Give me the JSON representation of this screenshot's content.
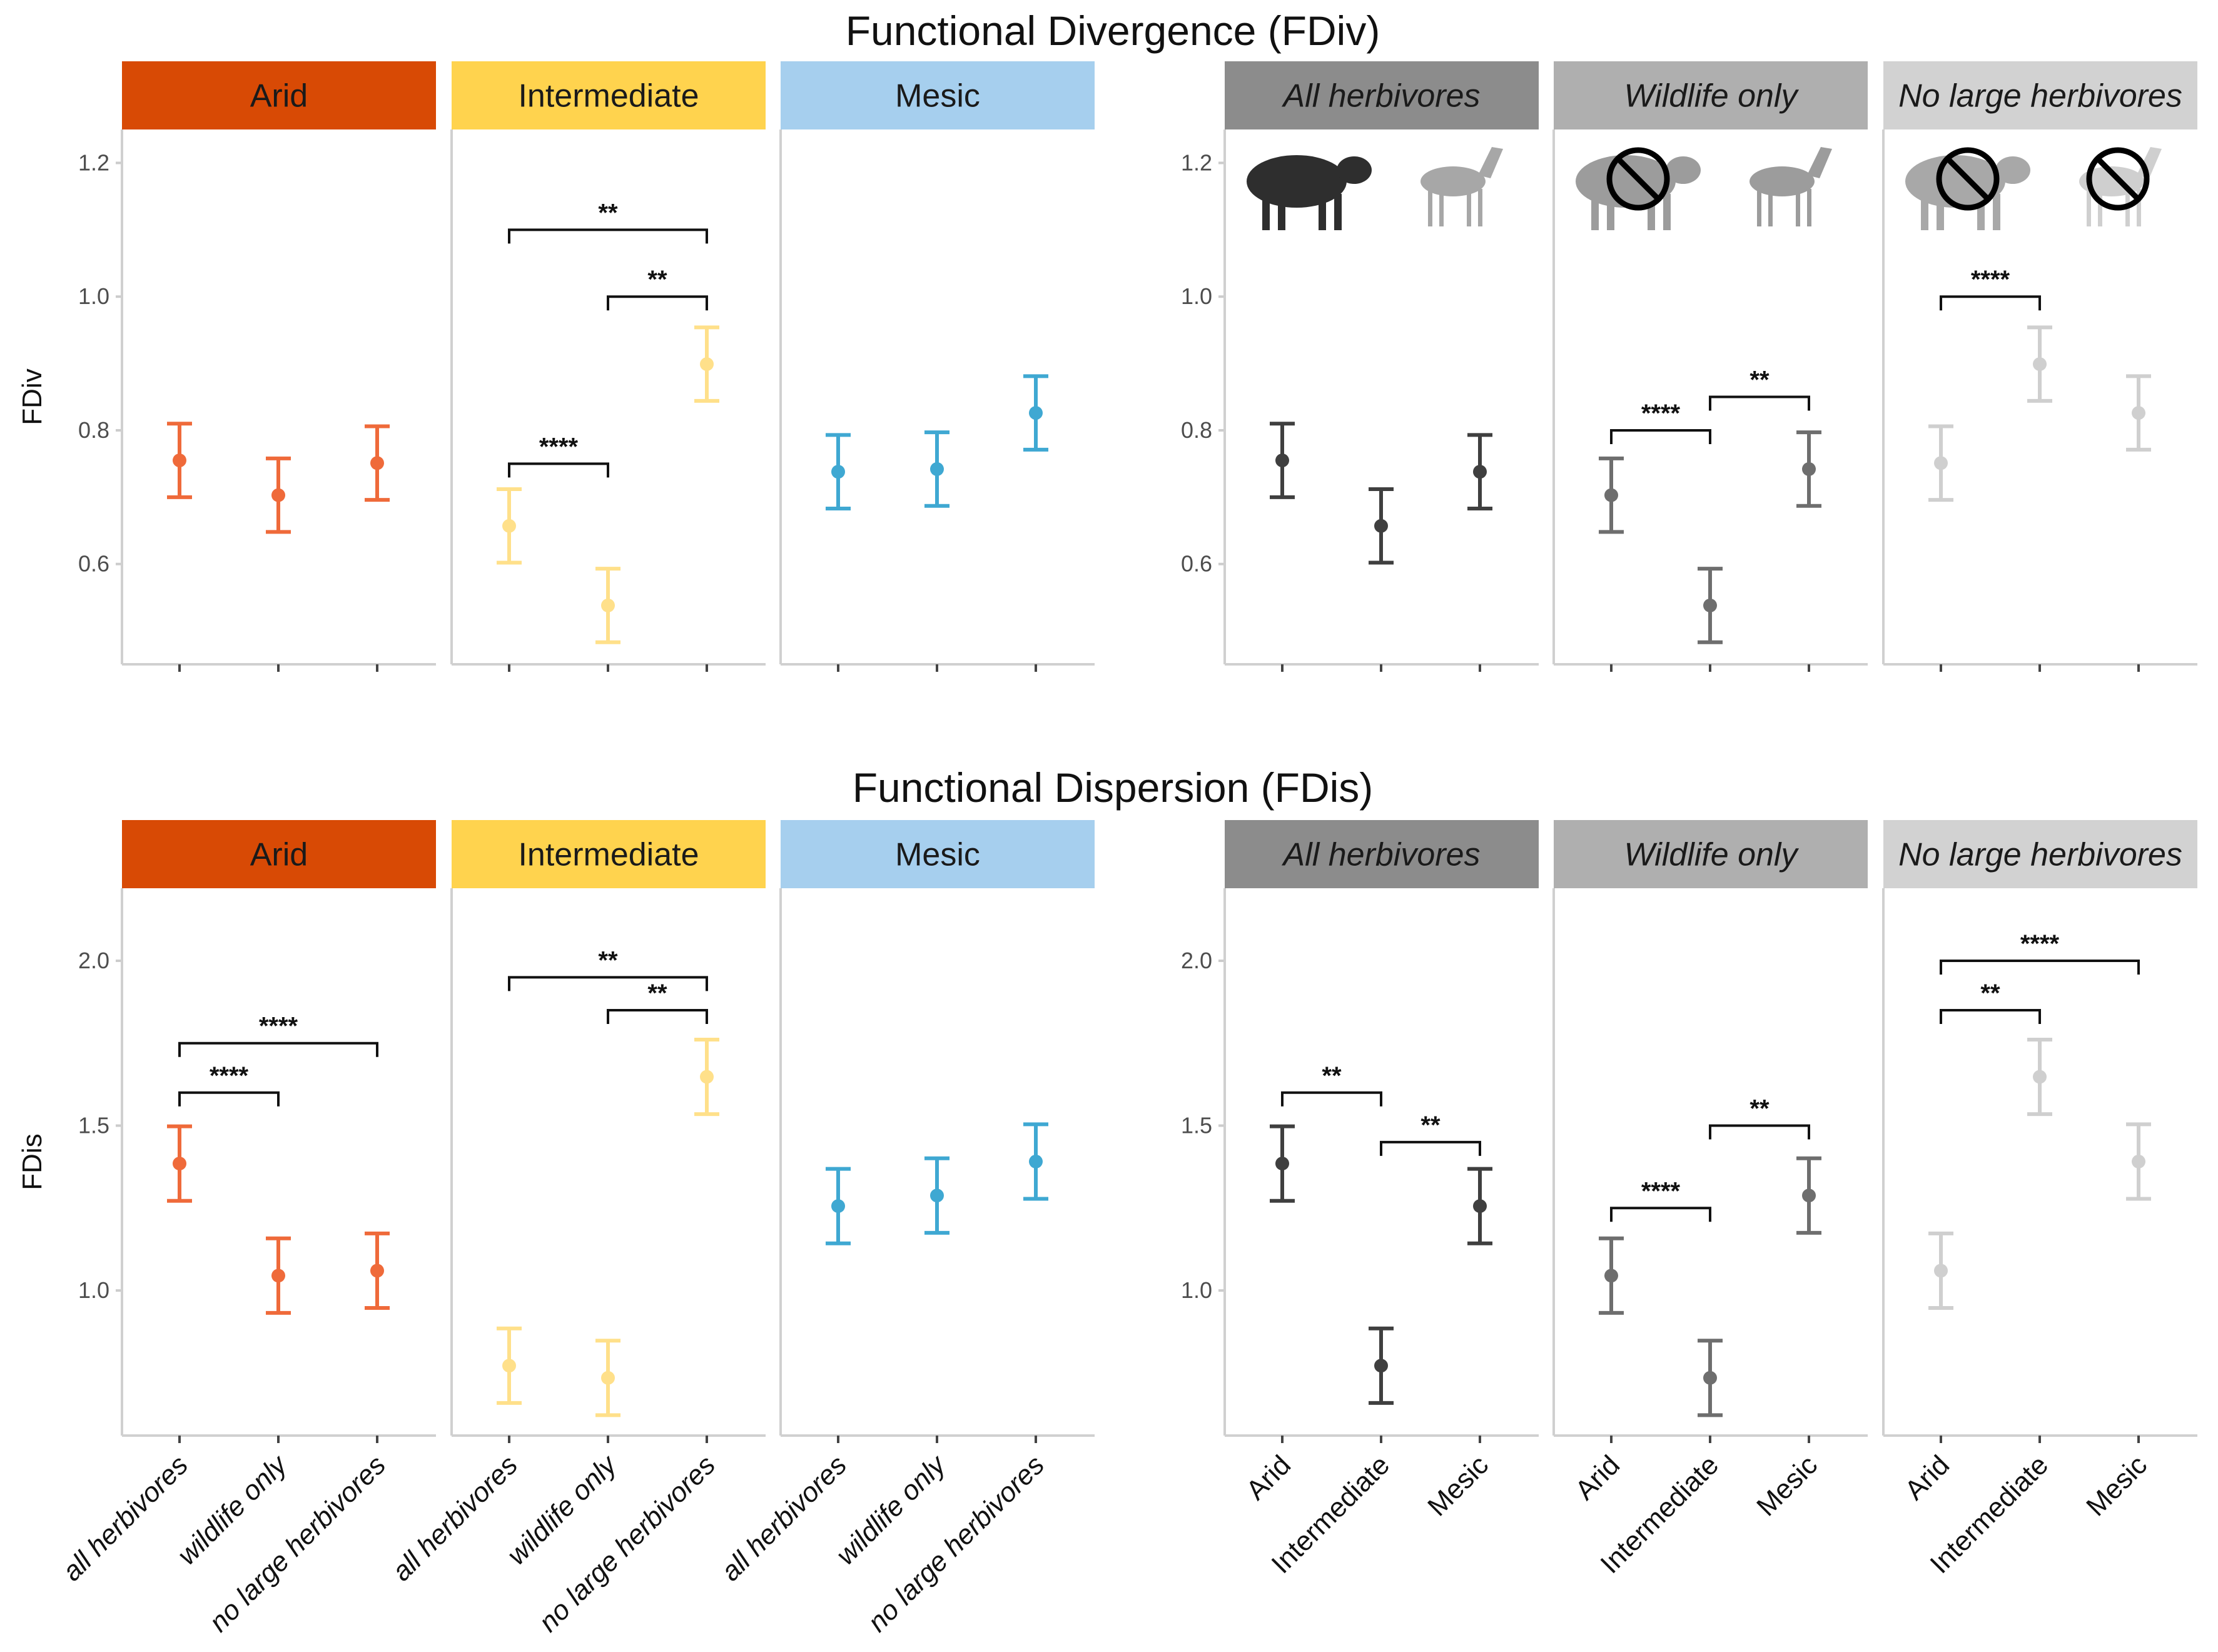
{
  "chart_data": [
    {
      "type": "errorbar",
      "title": "Functional Divergence (FDiv)",
      "ylabel": "FDiv",
      "ylim": [
        0.45,
        1.25
      ],
      "yticks": [
        0.6,
        0.8,
        1.0,
        1.2
      ],
      "ytick_labels": [
        "0.6",
        "0.8",
        "1.0",
        "1.2"
      ],
      "groupings": [
        {
          "panels": [
            {
              "strip": "Arid",
              "strip_color": "#D84A05",
              "strip_italic": false,
              "categories": [
                "all herbivores",
                "wildlife only",
                "no large herbivores"
              ],
              "color": "#EF6A3A",
              "points": [
                {
                  "mean": 0.755,
                  "low": 0.7,
                  "high": 0.81
                },
                {
                  "mean": 0.703,
                  "low": 0.648,
                  "high": 0.758
                },
                {
                  "mean": 0.751,
                  "low": 0.696,
                  "high": 0.806
                }
              ],
              "brackets": []
            },
            {
              "strip": "Intermediate",
              "strip_color": "#FFD34E",
              "strip_italic": false,
              "categories": [
                "all herbivores",
                "wildlife only",
                "no large herbivores"
              ],
              "color": "#FFE08A",
              "points": [
                {
                  "mean": 0.657,
                  "low": 0.602,
                  "high": 0.712
                },
                {
                  "mean": 0.538,
                  "low": 0.483,
                  "high": 0.593
                },
                {
                  "mean": 0.899,
                  "low": 0.844,
                  "high": 0.954
                }
              ],
              "brackets": [
                {
                  "from": 0,
                  "to": 1,
                  "y": 0.75,
                  "label": "****"
                },
                {
                  "from": 1,
                  "to": 2,
                  "y": 1.0,
                  "label": "**"
                },
                {
                  "from": 0,
                  "to": 2,
                  "y": 1.1,
                  "label": "**"
                }
              ]
            },
            {
              "strip": "Mesic",
              "strip_color": "#A6CFEE",
              "strip_italic": false,
              "categories": [
                "all herbivores",
                "wildlife only",
                "no large herbivores"
              ],
              "color": "#3FA8D2",
              "points": [
                {
                  "mean": 0.738,
                  "low": 0.683,
                  "high": 0.793
                },
                {
                  "mean": 0.742,
                  "low": 0.687,
                  "high": 0.797
                },
                {
                  "mean": 0.826,
                  "low": 0.771,
                  "high": 0.881
                }
              ],
              "brackets": []
            }
          ]
        },
        {
          "panels": [
            {
              "strip": "All herbivores",
              "strip_color": "#8C8C8C",
              "strip_italic": true,
              "categories": [
                "Arid",
                "Intermediate",
                "Mesic"
              ],
              "color": "#3F3F3F",
              "points": [
                {
                  "mean": 0.755,
                  "low": 0.7,
                  "high": 0.81
                },
                {
                  "mean": 0.657,
                  "low": 0.602,
                  "high": 0.712
                },
                {
                  "mean": 0.738,
                  "low": 0.683,
                  "high": 0.793
                }
              ],
              "brackets": [],
              "icons": [
                {
                  "slot": 0,
                  "fill": "#2E2E2E",
                  "crossed": false,
                  "kind": "cow"
                },
                {
                  "slot": 2,
                  "fill": "#A7A7A7",
                  "crossed": false,
                  "kind": "antelope"
                }
              ]
            },
            {
              "strip": "Wildlife only",
              "strip_color": "#AFAFAF",
              "strip_italic": true,
              "categories": [
                "Arid",
                "Intermediate",
                "Mesic"
              ],
              "color": "#6E6E6E",
              "points": [
                {
                  "mean": 0.703,
                  "low": 0.648,
                  "high": 0.758
                },
                {
                  "mean": 0.538,
                  "low": 0.483,
                  "high": 0.593
                },
                {
                  "mean": 0.742,
                  "low": 0.687,
                  "high": 0.797
                }
              ],
              "brackets": [
                {
                  "from": 0,
                  "to": 1,
                  "y": 0.8,
                  "label": "****"
                },
                {
                  "from": 1,
                  "to": 2,
                  "y": 0.85,
                  "label": "**"
                }
              ],
              "icons": [
                {
                  "slot": 0,
                  "fill": "#9C9C9C",
                  "crossed": true,
                  "kind": "cow"
                },
                {
                  "slot": 2,
                  "fill": "#9C9C9C",
                  "crossed": false,
                  "kind": "antelope"
                }
              ]
            },
            {
              "strip": "No large herbivores",
              "strip_color": "#D2D2D2",
              "strip_italic": true,
              "categories": [
                "Arid",
                "Intermediate",
                "Mesic"
              ],
              "color": "#CFCFCF",
              "points": [
                {
                  "mean": 0.751,
                  "low": 0.696,
                  "high": 0.806
                },
                {
                  "mean": 0.899,
                  "low": 0.844,
                  "high": 0.954
                },
                {
                  "mean": 0.826,
                  "low": 0.771,
                  "high": 0.881
                }
              ],
              "brackets": [
                {
                  "from": 0,
                  "to": 1,
                  "y": 1.0,
                  "label": "****"
                }
              ],
              "icons": [
                {
                  "slot": 0,
                  "fill": "#A8A8A8",
                  "crossed": true,
                  "kind": "cow"
                },
                {
                  "slot": 2,
                  "fill": "#CFCFCF",
                  "crossed": true,
                  "kind": "antelope"
                }
              ]
            }
          ]
        }
      ]
    },
    {
      "type": "errorbar",
      "title": "Functional Dispersion (FDis)",
      "ylabel": "FDis",
      "ylim": [
        0.56,
        2.22
      ],
      "yticks": [
        1.0,
        1.5,
        2.0
      ],
      "ytick_labels": [
        "1.0",
        "1.5",
        "2.0"
      ],
      "groupings": [
        {
          "panels": [
            {
              "strip": "Arid",
              "strip_color": "#D84A05",
              "strip_italic": false,
              "categories": [
                "all herbivores",
                "wildlife only",
                "no large herbivores"
              ],
              "color": "#EF6A3A",
              "points": [
                {
                  "mean": 1.385,
                  "low": 1.272,
                  "high": 1.498
                },
                {
                  "mean": 1.045,
                  "low": 0.932,
                  "high": 1.158
                },
                {
                  "mean": 1.06,
                  "low": 0.947,
                  "high": 1.173
                }
              ],
              "brackets": [
                {
                  "from": 0,
                  "to": 1,
                  "y": 1.6,
                  "label": "****"
                },
                {
                  "from": 0,
                  "to": 2,
                  "y": 1.75,
                  "label": "****"
                }
              ]
            },
            {
              "strip": "Intermediate",
              "strip_color": "#FFD34E",
              "strip_italic": false,
              "categories": [
                "all herbivores",
                "wildlife only",
                "no large herbivores"
              ],
              "color": "#FFE08A",
              "points": [
                {
                  "mean": 0.772,
                  "low": 0.659,
                  "high": 0.885
                },
                {
                  "mean": 0.735,
                  "low": 0.622,
                  "high": 0.848
                },
                {
                  "mean": 1.648,
                  "low": 1.535,
                  "high": 1.761
                }
              ],
              "brackets": [
                {
                  "from": 1,
                  "to": 2,
                  "y": 1.85,
                  "label": "**"
                },
                {
                  "from": 0,
                  "to": 2,
                  "y": 1.95,
                  "label": "**"
                }
              ]
            },
            {
              "strip": "Mesic",
              "strip_color": "#A6CFEE",
              "strip_italic": false,
              "categories": [
                "all herbivores",
                "wildlife only",
                "no large herbivores"
              ],
              "color": "#3FA8D2",
              "points": [
                {
                  "mean": 1.256,
                  "low": 1.143,
                  "high": 1.369
                },
                {
                  "mean": 1.288,
                  "low": 1.175,
                  "high": 1.401
                },
                {
                  "mean": 1.391,
                  "low": 1.278,
                  "high": 1.504
                }
              ],
              "brackets": []
            }
          ]
        },
        {
          "panels": [
            {
              "strip": "All herbivores",
              "strip_color": "#8C8C8C",
              "strip_italic": true,
              "categories": [
                "Arid",
                "Intermediate",
                "Mesic"
              ],
              "color": "#3F3F3F",
              "points": [
                {
                  "mean": 1.385,
                  "low": 1.272,
                  "high": 1.498
                },
                {
                  "mean": 0.772,
                  "low": 0.659,
                  "high": 0.885
                },
                {
                  "mean": 1.256,
                  "low": 1.143,
                  "high": 1.369
                }
              ],
              "brackets": [
                {
                  "from": 0,
                  "to": 1,
                  "y": 1.6,
                  "label": "**"
                },
                {
                  "from": 1,
                  "to": 2,
                  "y": 1.45,
                  "label": "**"
                }
              ]
            },
            {
              "strip": "Wildlife only",
              "strip_color": "#AFAFAF",
              "strip_italic": true,
              "categories": [
                "Arid",
                "Intermediate",
                "Mesic"
              ],
              "color": "#6E6E6E",
              "points": [
                {
                  "mean": 1.045,
                  "low": 0.932,
                  "high": 1.158
                },
                {
                  "mean": 0.735,
                  "low": 0.622,
                  "high": 0.848
                },
                {
                  "mean": 1.288,
                  "low": 1.175,
                  "high": 1.401
                }
              ],
              "brackets": [
                {
                  "from": 0,
                  "to": 1,
                  "y": 1.25,
                  "label": "****"
                },
                {
                  "from": 1,
                  "to": 2,
                  "y": 1.5,
                  "label": "**"
                }
              ]
            },
            {
              "strip": "No large herbivores",
              "strip_color": "#D2D2D2",
              "strip_italic": true,
              "categories": [
                "Arid",
                "Intermediate",
                "Mesic"
              ],
              "color": "#CFCFCF",
              "points": [
                {
                  "mean": 1.06,
                  "low": 0.947,
                  "high": 1.173
                },
                {
                  "mean": 1.648,
                  "low": 1.535,
                  "high": 1.761
                },
                {
                  "mean": 1.391,
                  "low": 1.278,
                  "high": 1.504
                }
              ],
              "brackets": [
                {
                  "from": 0,
                  "to": 1,
                  "y": 1.85,
                  "label": "**"
                },
                {
                  "from": 0,
                  "to": 2,
                  "y": 2.0,
                  "label": "****"
                }
              ]
            }
          ]
        }
      ]
    }
  ]
}
